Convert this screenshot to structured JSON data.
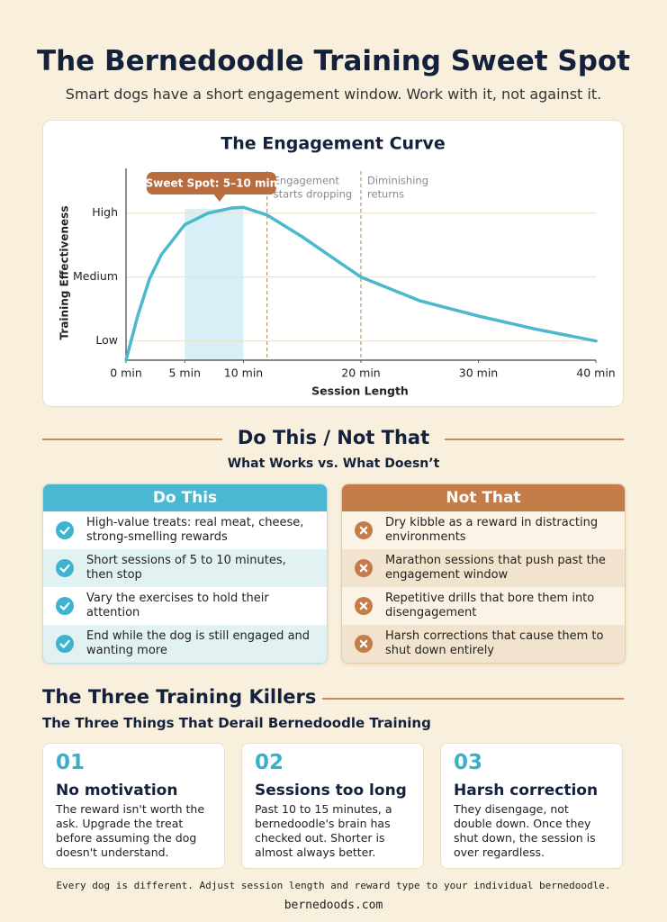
{
  "header": {
    "title": "The Bernedoodle Training Sweet Spot",
    "subtitle": "Smart dogs have a short engagement window. Work with it, not against it."
  },
  "chart_data": {
    "type": "line",
    "title": "The Engagement Curve",
    "x_label": "Session Length",
    "y_label": "Training Effectiveness",
    "x": [
      0,
      1,
      2,
      3,
      5,
      7,
      9,
      10,
      12,
      15,
      18,
      20,
      25,
      30,
      35,
      40
    ],
    "values": [
      0.7,
      1.4,
      1.97,
      2.35,
      2.82,
      3.0,
      3.08,
      3.09,
      2.97,
      2.63,
      2.25,
      2.0,
      1.63,
      1.39,
      1.18,
      1.0
    ],
    "color": "#4bb8cc",
    "xlim": [
      0,
      40
    ],
    "xticks": [
      {
        "value": 0,
        "label": "0 min"
      },
      {
        "value": 5,
        "label": "5 min"
      },
      {
        "value": 10,
        "label": "10 min"
      },
      {
        "value": 20,
        "label": "20 min"
      },
      {
        "value": 30,
        "label": "30 min"
      },
      {
        "value": 40,
        "label": "40 min"
      }
    ],
    "ylim": [
      0.7,
      3.7
    ],
    "yticks": [
      {
        "value": 1,
        "label": "Low"
      },
      {
        "value": 2,
        "label": "Medium"
      },
      {
        "value": 3,
        "label": "High"
      }
    ],
    "grid": true,
    "highlight": {
      "from": 5,
      "to": 10,
      "label": "Sweet Spot: 5–10 min",
      "color": "#d8eff7"
    },
    "annotations": [
      {
        "x": 12,
        "lines": [
          "Engagement",
          "starts dropping"
        ]
      },
      {
        "x": 20,
        "lines": [
          "Diminishing",
          "returns"
        ]
      }
    ]
  },
  "comparison": {
    "title": "Do This / Not That",
    "subtitle": "What Works vs. What Doesn’t",
    "do": {
      "title": "Do This",
      "items": [
        "High-value treats: real meat, cheese, strong-smelling rewards",
        "Short sessions of 5 to 10 minutes, then stop",
        "Vary the exercises to hold their attention",
        "End while the dog is still engaged and wanting more"
      ]
    },
    "dont": {
      "title": "Not That",
      "items": [
        "Dry kibble as a reward in distracting environments",
        "Marathon sessions that push past the engagement window",
        "Repetitive drills that bore them into disengagement",
        "Harsh corrections that cause them to shut down entirely"
      ]
    }
  },
  "killers": {
    "title": "The Three Training Killers",
    "subtitle": "The Three Things That Derail Bernedoodle Training",
    "cards": [
      {
        "number": "01",
        "title": "No motivation",
        "text": "The reward isn't worth the ask. Upgrade the treat before assuming the dog doesn't understand."
      },
      {
        "number": "02",
        "title": "Sessions too long",
        "text": "Past 10 to 15 minutes, a bernedoodle's brain has checked out. Shorter is almost always better."
      },
      {
        "number": "03",
        "title": "Harsh correction",
        "text": "They disengage, not double down. Once they shut down, the session is over regardless."
      }
    ]
  },
  "footer": {
    "note": "Every dog is different. Adjust session length and reward type to your individual bernedoodle.",
    "site": "bernedoods.com"
  }
}
